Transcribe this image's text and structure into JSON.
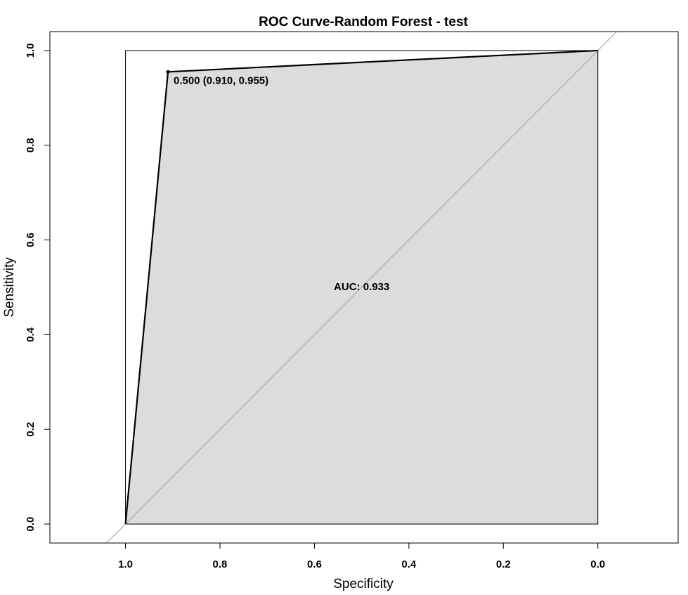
{
  "chart_data": {
    "type": "line",
    "title": "ROC Curve-Random Forest - test",
    "xlabel": "Specificity",
    "ylabel": "Sensitivity",
    "xlim": [
      1.16,
      -0.17
    ],
    "ylim": [
      -0.04,
      1.04
    ],
    "x_reversed": true,
    "x_ticks": [
      1.0,
      0.8,
      0.6,
      0.4,
      0.2,
      0.0
    ],
    "x_tick_labels": [
      "1.0",
      "0.8",
      "0.6",
      "0.4",
      "0.2",
      "0.0"
    ],
    "y_ticks": [
      0.0,
      0.2,
      0.4,
      0.6,
      0.8,
      1.0
    ],
    "y_tick_labels": [
      "0.0",
      "0.2",
      "0.4",
      "0.6",
      "0.8",
      "1.0"
    ],
    "series": [
      {
        "specificity": [
          1.0,
          0.91,
          0.0
        ],
        "sensitivity": [
          0.0,
          0.955,
          1.0
        ]
      }
    ],
    "auc_polygon_fill": "#dcdcdc",
    "curve_color": "#000000",
    "diagonal_color": "#a0a0a0",
    "threshold_point": {
      "specificity": 0.91,
      "sensitivity": 0.955,
      "label": "0.500 (0.910, 0.955)"
    },
    "auc_label": "AUC: 0.933",
    "auc_label_position": {
      "specificity": 0.5,
      "sensitivity": 0.5
    },
    "grid": false
  }
}
